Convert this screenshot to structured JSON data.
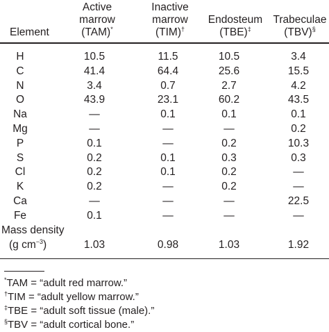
{
  "table": {
    "headers": {
      "element": "Element",
      "tam": {
        "line1": "Active",
        "line2": "marrow",
        "line3": "(TAM)",
        "mark": "*"
      },
      "tim": {
        "line1": "Inactive",
        "line2": "marrow",
        "line3": "(TIM)",
        "mark": "†"
      },
      "tbe": {
        "line1": "Endosteum",
        "line2": "(TBE)",
        "mark": "‡"
      },
      "tbv": {
        "line1": "Trabeculae",
        "line2": "(TBV)",
        "mark": "§"
      }
    },
    "rows": [
      {
        "element": "H",
        "tam": "10.5",
        "tim": "11.5",
        "tbe": "10.5",
        "tbv": "3.4"
      },
      {
        "element": "C",
        "tam": "41.4",
        "tim": "64.4",
        "tbe": "25.6",
        "tbv": "15.5"
      },
      {
        "element": "N",
        "tam": "3.4",
        "tim": "0.7",
        "tbe": "2.7",
        "tbv": "4.2"
      },
      {
        "element": "O",
        "tam": "43.9",
        "tim": "23.1",
        "tbe": "60.2",
        "tbv": "43.5"
      },
      {
        "element": "Na",
        "tam": "—",
        "tim": "0.1",
        "tbe": "0.1",
        "tbv": "0.1"
      },
      {
        "element": "Mg",
        "tam": "—",
        "tim": "—",
        "tbe": "—",
        "tbv": "0.2"
      },
      {
        "element": "P",
        "tam": "0.1",
        "tim": "—",
        "tbe": "0.2",
        "tbv": "10.3"
      },
      {
        "element": "S",
        "tam": "0.2",
        "tim": "0.1",
        "tbe": "0.3",
        "tbv": "0.3"
      },
      {
        "element": "Cl",
        "tam": "0.2",
        "tim": "0.1",
        "tbe": "0.2",
        "tbv": "—"
      },
      {
        "element": "K",
        "tam": "0.2",
        "tim": "—",
        "tbe": "0.2",
        "tbv": "—"
      },
      {
        "element": "Ca",
        "tam": "—",
        "tim": "—",
        "tbe": "—",
        "tbv": "22.5"
      },
      {
        "element": "Fe",
        "tam": "0.1",
        "tim": "—",
        "tbe": "—",
        "tbv": "—"
      }
    ],
    "mass_density": {
      "label": "Mass density",
      "unit_prefix": "(g cm",
      "unit_exp": "−3",
      "unit_suffix": ")",
      "tam": "1.03",
      "tim": "0.98",
      "tbe": "1.03",
      "tbv": "1.92"
    }
  },
  "footnotes": [
    {
      "mark": "*",
      "text": "TAM = “adult red marrow.”"
    },
    {
      "mark": "†",
      "text": "TIM = “adult yellow marrow.”"
    },
    {
      "mark": "‡",
      "text": "TBE = “adult soft tissue (male).”"
    },
    {
      "mark": "§",
      "text": "TBV = “adult cortical bone.”"
    }
  ]
}
